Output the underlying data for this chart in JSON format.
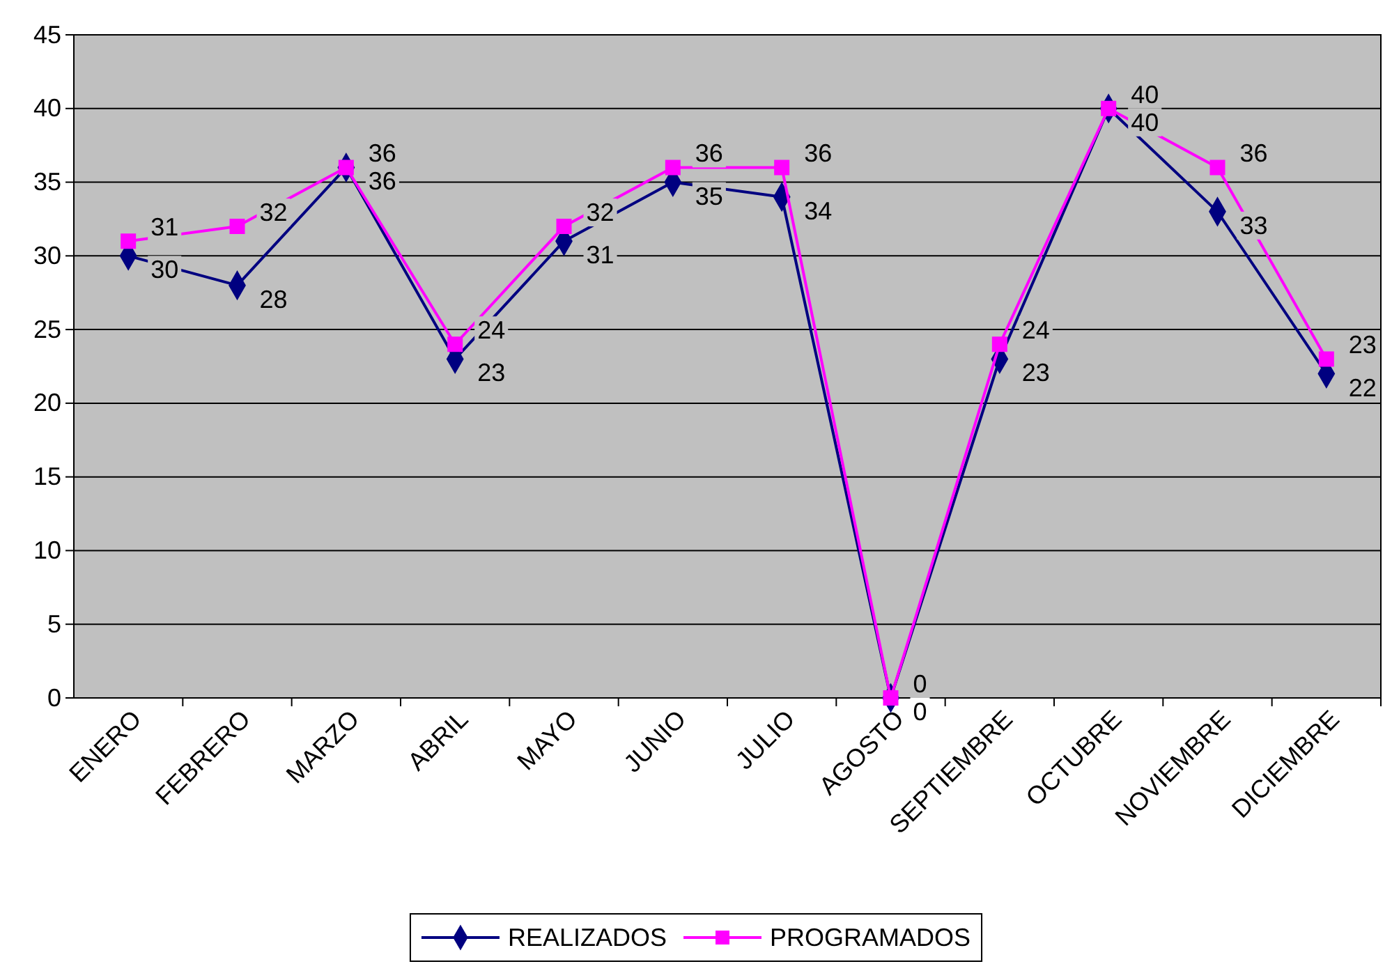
{
  "chart_data": {
    "type": "line",
    "categories": [
      "ENERO",
      "FEBRERO",
      "MARZO",
      "ABRIL",
      "MAYO",
      "JUNIO",
      "JULIO",
      "AGOSTO",
      "SEPTIEMBRE",
      "OCTUBRE",
      "NOVIEMBRE",
      "DICIEMBRE"
    ],
    "series": [
      {
        "name": "REALIZADOS",
        "color": "#000080",
        "marker": "diamond",
        "values": [
          30,
          28,
          36,
          23,
          31,
          35,
          34,
          0,
          23,
          40,
          33,
          22
        ]
      },
      {
        "name": "PROGRAMADOS",
        "color": "#ff00ff",
        "marker": "square",
        "values": [
          31,
          32,
          36,
          24,
          32,
          36,
          36,
          0,
          24,
          40,
          36,
          23
        ]
      }
    ],
    "ylim": [
      0,
      45
    ],
    "yticks": [
      0,
      5,
      10,
      15,
      20,
      25,
      30,
      35,
      40,
      45
    ],
    "grid": "y",
    "legend": "bottom",
    "data_labels": true,
    "line_style": "solid"
  }
}
